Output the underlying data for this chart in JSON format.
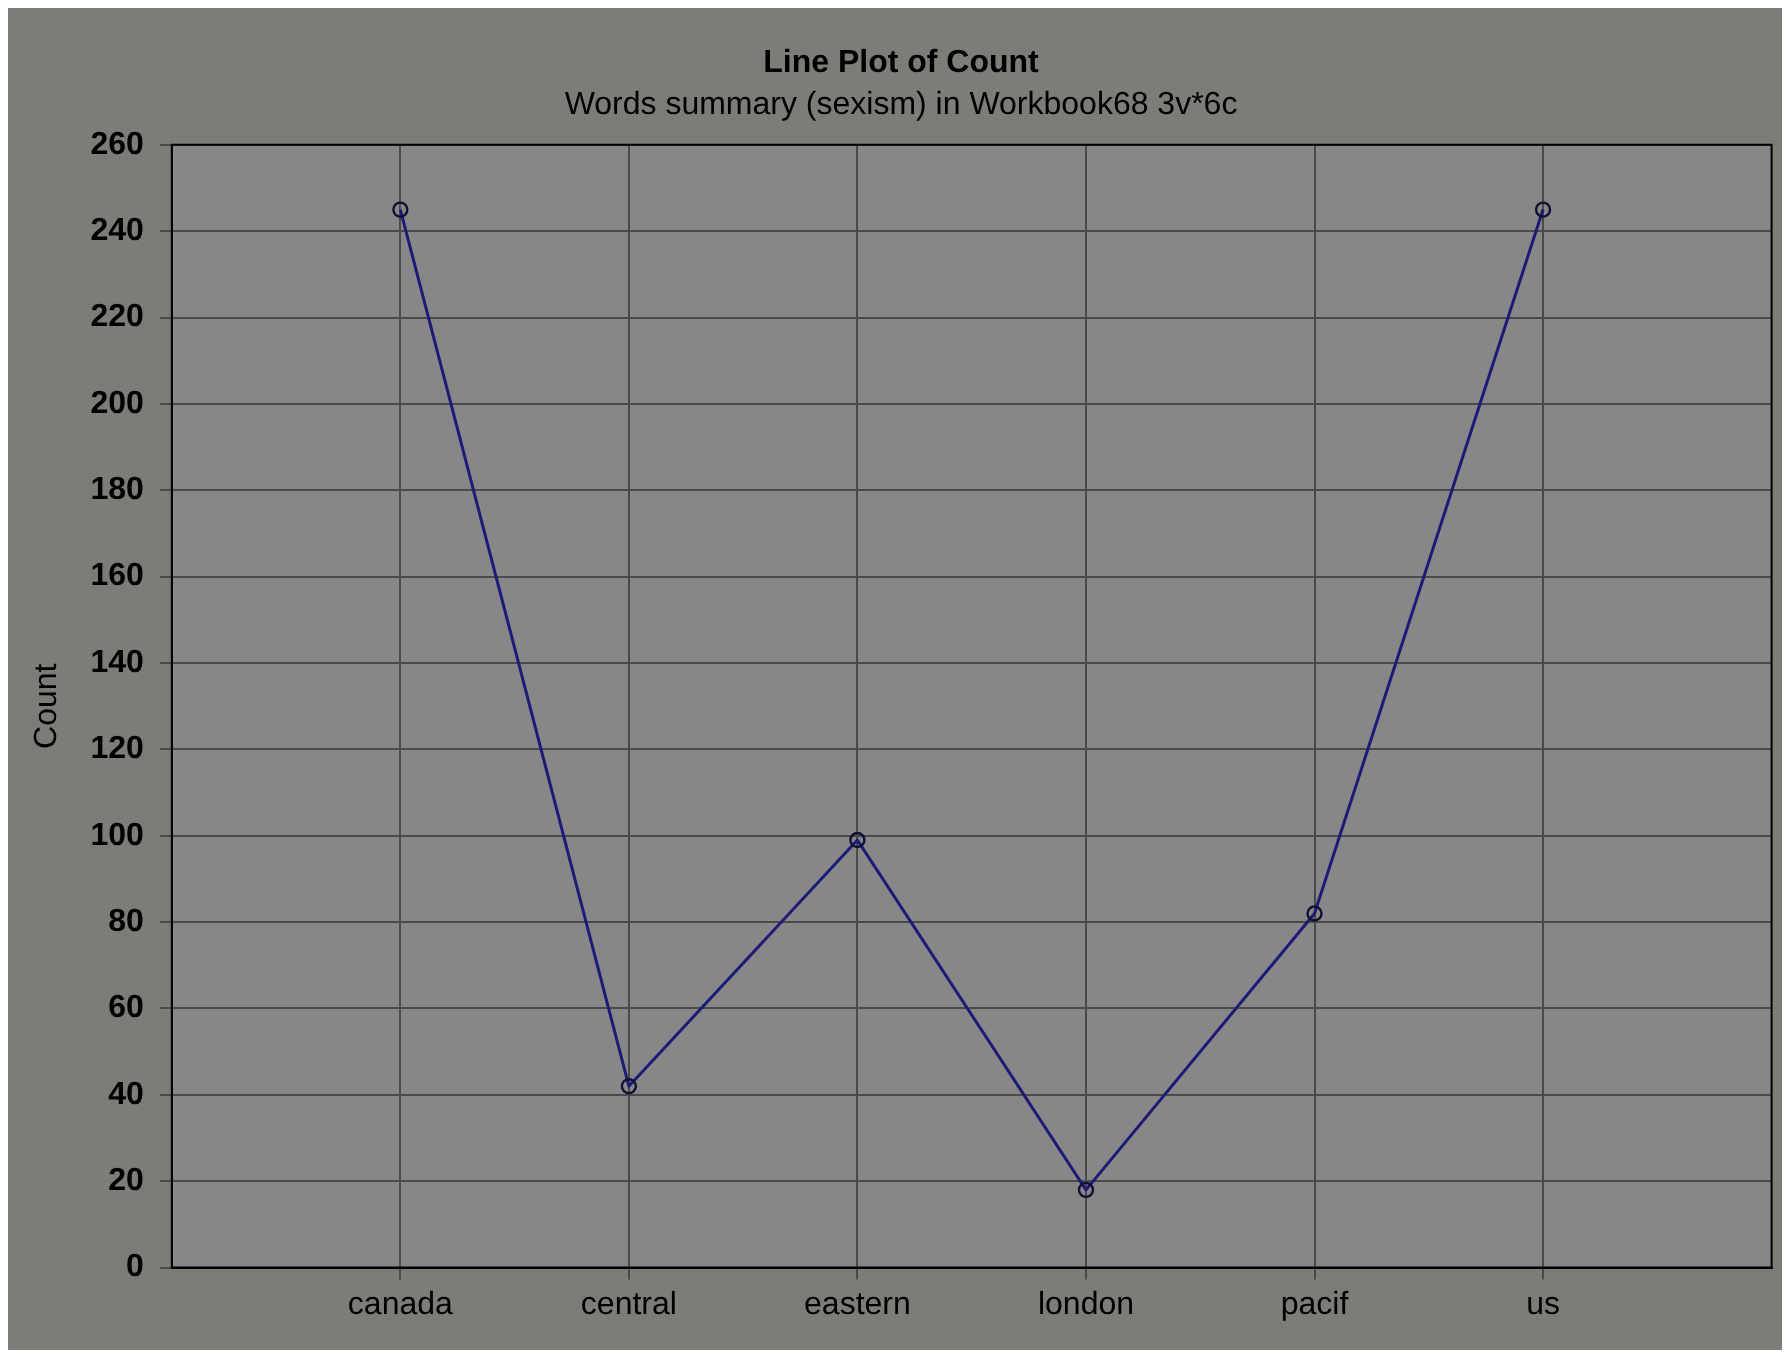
{
  "chart_data": {
    "type": "line",
    "title": "Line Plot of Count",
    "subtitle": "Words summary (sexism) in Workbook68 3v*6c",
    "ylabel": "Count",
    "categories": [
      "canada",
      "central",
      "eastern",
      "london",
      "pacif",
      "us"
    ],
    "series": [
      {
        "color": "#1c1c78",
        "values": [
          245,
          42,
          99,
          18,
          82,
          245
        ]
      }
    ],
    "ylim": [
      0,
      260
    ],
    "yticks": [
      0,
      20,
      40,
      60,
      80,
      100,
      120,
      140,
      160,
      180,
      200,
      220,
      240,
      260
    ],
    "grid": true,
    "legend": false,
    "marker": "circle",
    "line_style": "solid"
  }
}
